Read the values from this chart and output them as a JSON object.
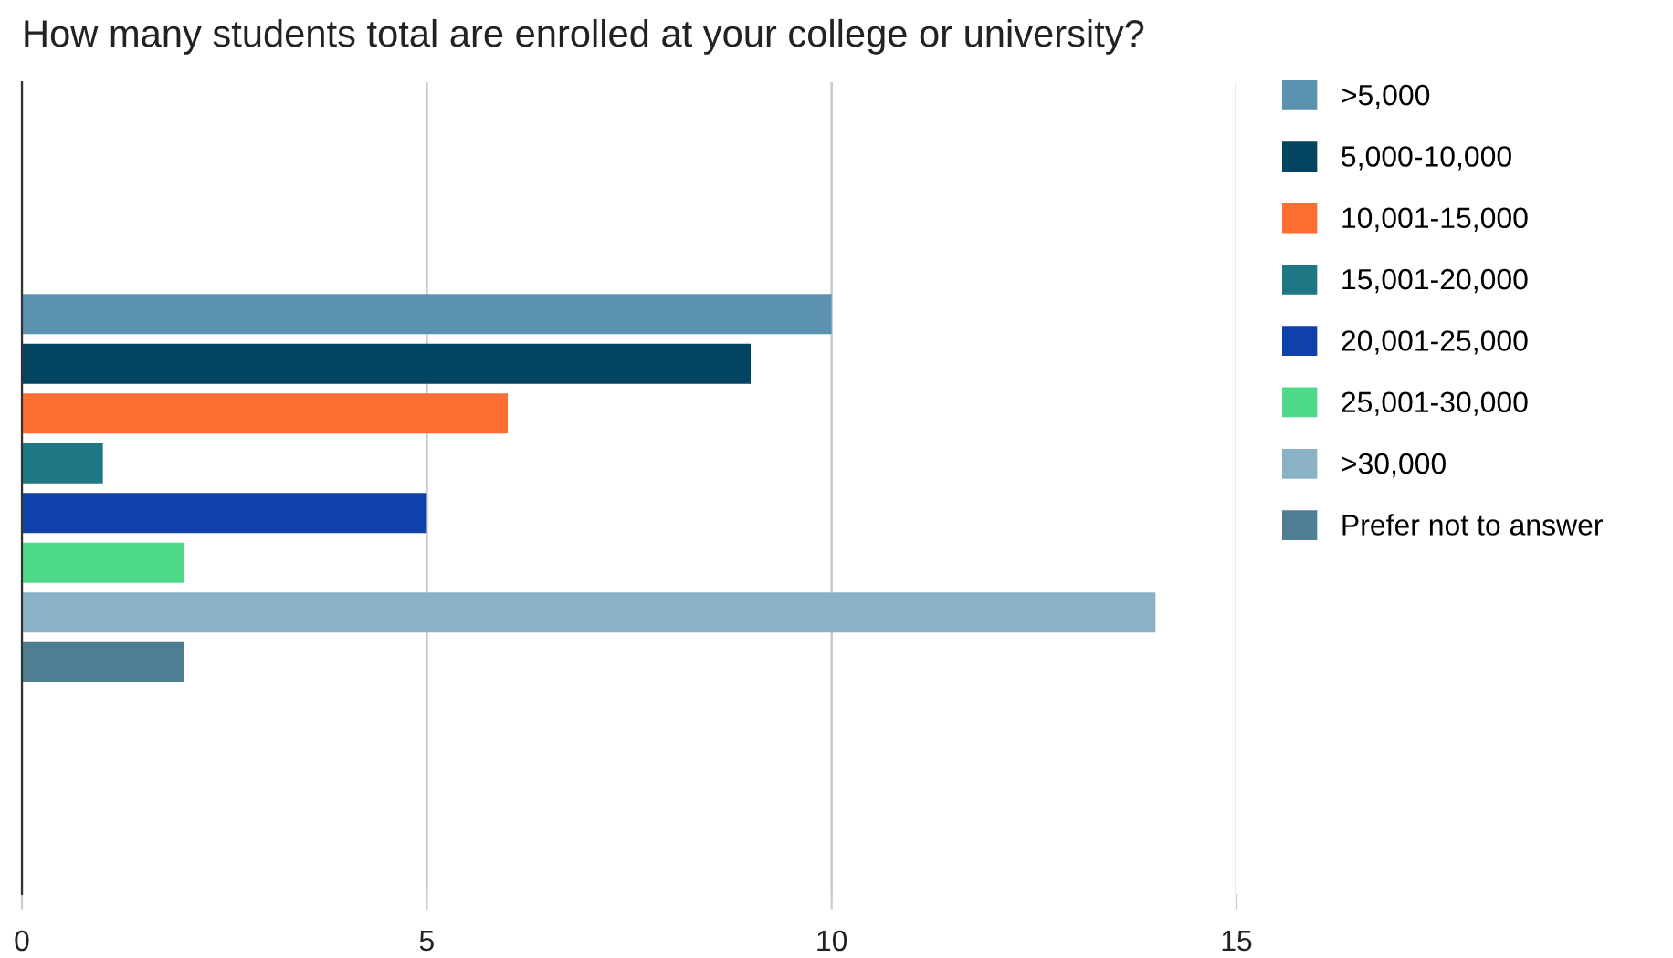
{
  "chart_data": {
    "type": "bar",
    "orientation": "horizontal",
    "title": "How many students total are enrolled at your college or university?",
    "categories": [
      null
    ],
    "series": [
      {
        "name": ">5,000",
        "color": "#5b92b0",
        "values": [
          10
        ]
      },
      {
        "name": "5,000-10,000",
        "color": "#034561",
        "values": [
          9
        ]
      },
      {
        "name": "10,001-15,000",
        "color": "#fe6d31",
        "values": [
          6
        ]
      },
      {
        "name": "15,001-20,000",
        "color": "#1e7886",
        "values": [
          1
        ]
      },
      {
        "name": "20,001-25,000",
        "color": "#0f41aa",
        "values": [
          5
        ]
      },
      {
        "name": "25,001-30,000",
        "color": "#4fda8a",
        "values": [
          2
        ]
      },
      {
        "name": ">30,000",
        "color": "#8ab2c5",
        "values": [
          14
        ]
      },
      {
        "name": "Prefer not to answer",
        "color": "#4f7d91",
        "values": [
          2
        ]
      }
    ],
    "xlim": [
      0,
      15
    ],
    "xticks": [
      0,
      5,
      10,
      15
    ],
    "grid": "x",
    "legend": "top right"
  }
}
